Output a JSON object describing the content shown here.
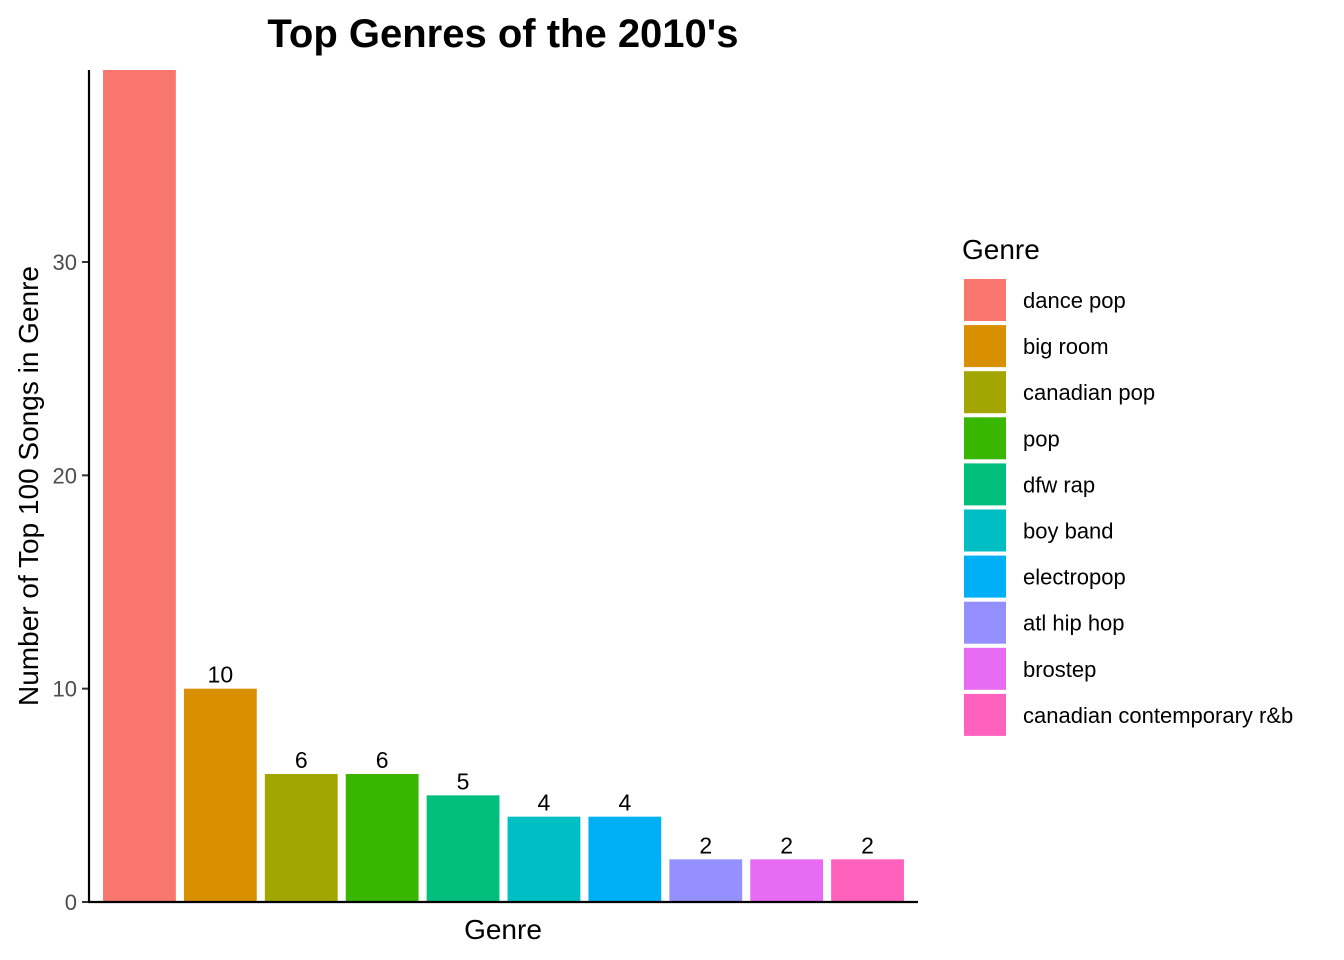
{
  "chart_data": {
    "type": "bar",
    "title": "Top Genres of the 2010's",
    "xlabel": "Genre",
    "ylabel": "Number of Top 100 Songs in Genre",
    "categories": [
      "dance pop",
      "big room",
      "canadian pop",
      "pop",
      "dfw rap",
      "boy band",
      "electropop",
      "atl hip hop",
      "brostep",
      "canadian contemporary r&b"
    ],
    "values": [
      39,
      10,
      6,
      6,
      5,
      4,
      4,
      2,
      2,
      2
    ],
    "data_labels": [
      "",
      "10",
      "6",
      "6",
      "5",
      "4",
      "4",
      "2",
      "2",
      "2"
    ],
    "colors": [
      "#F8766D",
      "#D89000",
      "#A3A500",
      "#39B600",
      "#00BF7D",
      "#00BFC4",
      "#00B0F6",
      "#9590FF",
      "#E76BF3",
      "#FF62BC"
    ],
    "y_ticks": [
      0,
      10,
      20,
      30
    ],
    "ylim": [
      0,
      39
    ],
    "grid": false,
    "legend": {
      "title": "Genre",
      "position": "right"
    }
  }
}
